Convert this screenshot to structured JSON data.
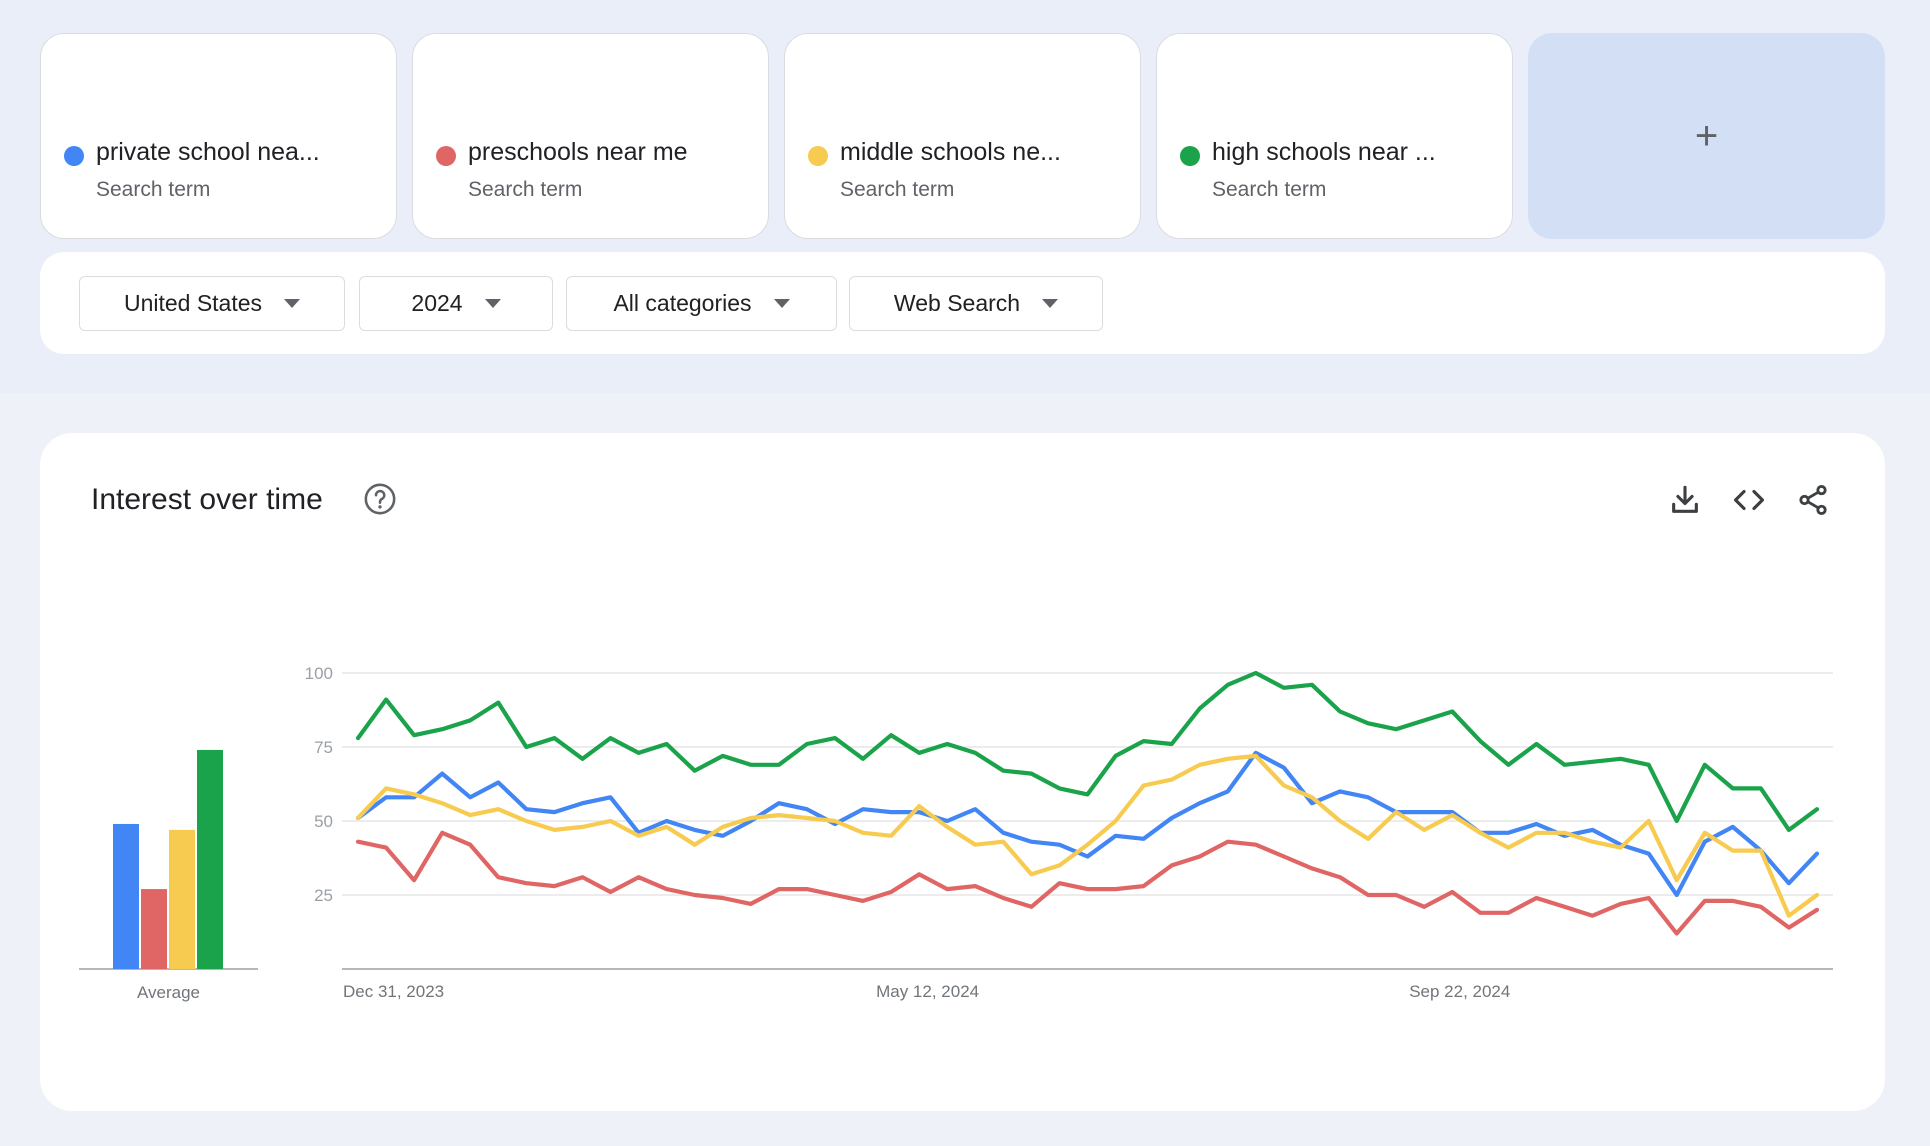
{
  "terms": [
    {
      "label": "private school nea...",
      "sub": "Search term",
      "color": "#4285f4"
    },
    {
      "label": "preschools near me",
      "sub": "Search term",
      "color": "#e06666"
    },
    {
      "label": "middle schools ne...",
      "sub": "Search term",
      "color": "#f6cb4f"
    },
    {
      "label": "high schools near ...",
      "sub": "Search term",
      "color": "#1aa34a"
    }
  ],
  "add_term": {
    "label": "+"
  },
  "filters": {
    "region": "United States",
    "time": "2024",
    "category": "All categories",
    "search_type": "Web Search"
  },
  "panel": {
    "title": "Interest over time",
    "icons": [
      "help-icon",
      "download-icon",
      "embed-code-icon",
      "share-icon"
    ]
  },
  "chart_data": {
    "type": "line",
    "title": "Interest over time",
    "ylim": [
      0,
      100
    ],
    "yticks": [
      100,
      75,
      50,
      25
    ],
    "xtick_labels": [
      "Dec 31, 2023",
      "May 12, 2024",
      "Sep 22, 2024"
    ],
    "xtick_indices": [
      0,
      19,
      38
    ],
    "average_label": "Average",
    "averages": [
      49,
      27,
      47,
      74
    ],
    "series": [
      {
        "name": "private school near me",
        "color": "#4285f4",
        "values": [
          51,
          58,
          58,
          66,
          58,
          63,
          54,
          53,
          56,
          58,
          46,
          50,
          47,
          45,
          50,
          56,
          54,
          49,
          54,
          53,
          53,
          50,
          54,
          46,
          43,
          42,
          38,
          45,
          44,
          51,
          56,
          60,
          73,
          68,
          56,
          60,
          58,
          53,
          53,
          53,
          46,
          46,
          49,
          45,
          47,
          42,
          39,
          25,
          43,
          48,
          40,
          29,
          39
        ]
      },
      {
        "name": "preschools near me",
        "color": "#e06666",
        "values": [
          43,
          41,
          30,
          46,
          42,
          31,
          29,
          28,
          31,
          26,
          31,
          27,
          25,
          24,
          22,
          27,
          27,
          25,
          23,
          26,
          32,
          27,
          28,
          24,
          21,
          29,
          27,
          27,
          28,
          35,
          38,
          43,
          42,
          38,
          34,
          31,
          25,
          25,
          21,
          26,
          19,
          19,
          24,
          21,
          18,
          22,
          24,
          12,
          23,
          23,
          21,
          14,
          20
        ]
      },
      {
        "name": "middle schools near me",
        "color": "#f6cb4f",
        "values": [
          51,
          61,
          59,
          56,
          52,
          54,
          50,
          47,
          48,
          50,
          45,
          48,
          42,
          48,
          51,
          52,
          51,
          50,
          46,
          45,
          55,
          48,
          42,
          43,
          32,
          35,
          42,
          50,
          62,
          64,
          69,
          71,
          72,
          62,
          58,
          50,
          44,
          53,
          47,
          52,
          46,
          41,
          46,
          46,
          43,
          41,
          50,
          30,
          46,
          40,
          40,
          18,
          25
        ]
      },
      {
        "name": "high schools near me",
        "color": "#1aa34a",
        "values": [
          78,
          91,
          79,
          81,
          84,
          90,
          75,
          78,
          71,
          78,
          73,
          76,
          67,
          72,
          69,
          69,
          76,
          78,
          71,
          79,
          73,
          76,
          73,
          67,
          66,
          61,
          59,
          72,
          77,
          76,
          88,
          96,
          100,
          95,
          96,
          87,
          83,
          81,
          84,
          87,
          77,
          69,
          76,
          69,
          70,
          71,
          69,
          50,
          69,
          61,
          61,
          47,
          54
        ]
      }
    ]
  }
}
